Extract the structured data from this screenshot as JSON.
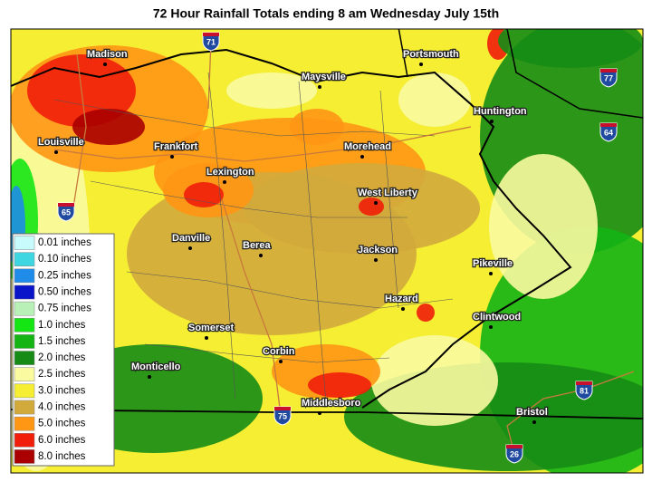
{
  "title": "72 Hour Rainfall Totals ending 8 am Wednesday July 15th",
  "legend": [
    {
      "label": "0.01 inches",
      "color": "#c8fcfc"
    },
    {
      "label": "0.10 inches",
      "color": "#3ed6e0"
    },
    {
      "label": "0.25 inches",
      "color": "#1e8ce8"
    },
    {
      "label": "0.50 inches",
      "color": "#0a14c8"
    },
    {
      "label": "0.75 inches",
      "color": "#b8f0b8"
    },
    {
      "label": "1.0 inches",
      "color": "#14e614"
    },
    {
      "label": "1.5 inches",
      "color": "#14b414"
    },
    {
      "label": "2.0 inches",
      "color": "#168c16"
    },
    {
      "label": "2.5 inches",
      "color": "#fafaa0"
    },
    {
      "label": "3.0 inches",
      "color": "#f5ee32"
    },
    {
      "label": "4.0 inches",
      "color": "#d2aa3c"
    },
    {
      "label": "5.0 inches",
      "color": "#ff9614"
    },
    {
      "label": "6.0 inches",
      "color": "#f01e0a"
    },
    {
      "label": "8.0 inches",
      "color": "#aa0000"
    }
  ],
  "cities": [
    "Madison",
    "Portsmouth",
    "Maysville",
    "Huntington",
    "Louisville",
    "Frankfort",
    "Lexington",
    "Morehead",
    "West Liberty",
    "Danville",
    "Berea",
    "Jackson",
    "Pikeville",
    "Hazard",
    "Clintwood",
    "Somerset",
    "Corbin",
    "Monticello",
    "Middlesboro",
    "Bristol"
  ],
  "interstates": [
    "71",
    "77",
    "64",
    "65",
    "75",
    "81",
    "26"
  ]
}
